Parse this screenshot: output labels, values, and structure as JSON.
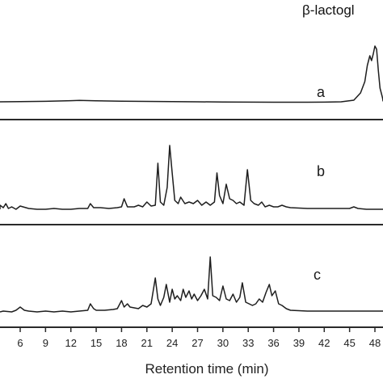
{
  "chart_data": {
    "type": "line",
    "xlabel": "Retention time (min)",
    "x_ticks": [
      6,
      9,
      12,
      15,
      18,
      21,
      24,
      27,
      30,
      33,
      36,
      39,
      42,
      45,
      48
    ],
    "xlim": [
      3,
      50
    ],
    "annotations": [
      {
        "text": "β-lactogl",
        "x": 47.5
      }
    ],
    "panels": [
      {
        "label": "a",
        "series": [
          {
            "x": [
              3,
              6,
              9,
              12,
              13,
              15,
              18,
              21,
              24,
              27,
              30,
              33,
              36,
              39,
              42,
              44,
              45.5,
              46.3,
              46.8,
              47.1,
              47.4,
              47.6,
              47.8,
              48.0,
              48.2,
              48.4,
              48.6,
              48.9,
              49.3,
              50
            ],
            "y": [
              1.0,
              1.2,
              1.6,
              2.4,
              2.7,
              2.2,
              1.8,
              1.5,
              1.2,
              1.0,
              0.8,
              0.6,
              0.5,
              0.5,
              0.6,
              1.0,
              3.0,
              12.0,
              26.0,
              46.0,
              58.0,
              52.0,
              60.0,
              70.0,
              66.0,
              40.0,
              18.0,
              6.0,
              2.0,
              1.5
            ]
          }
        ]
      },
      {
        "label": "b",
        "series": [
          {
            "x": [
              3,
              3.5,
              4,
              4.3,
              4.6,
              5,
              5.5,
              6,
              7,
              8,
              9,
              10,
              11,
              12,
              13,
              14,
              14.3,
              14.7,
              15.5,
              16.5,
              17.5,
              18,
              18.3,
              18.7,
              19.5,
              20,
              20.5,
              21,
              21.5,
              22,
              22.3,
              22.6,
              23,
              23.4,
              23.7,
              24.0,
              24.3,
              24.7,
              25,
              25.5,
              26,
              26.5,
              27,
              27.5,
              28,
              28.5,
              29,
              29.3,
              29.6,
              30,
              30.4,
              30.8,
              31.2,
              31.6,
              32,
              32.5,
              32.9,
              33.3,
              33.7,
              34.2,
              34.6,
              35,
              35.5,
              36,
              36.5,
              37,
              37.5,
              38,
              40,
              42,
              44,
              45,
              45.5,
              46,
              47,
              48,
              49,
              50
            ],
            "y": [
              3,
              8,
              5,
              10,
              4,
              6,
              3,
              7,
              4,
              3,
              3,
              4,
              3,
              3,
              4,
              4,
              10,
              5,
              5,
              4,
              5,
              6,
              16,
              6,
              6,
              8,
              6,
              12,
              7,
              8,
              60,
              12,
              8,
              30,
              82,
              48,
              14,
              10,
              18,
              10,
              12,
              10,
              14,
              8,
              12,
              8,
              12,
              48,
              20,
              10,
              34,
              16,
              14,
              10,
              12,
              8,
              52,
              14,
              10,
              8,
              12,
              6,
              8,
              6,
              6,
              8,
              6,
              5,
              4,
              4,
              4,
              4,
              6,
              4,
              3,
              3,
              3,
              3
            ]
          }
        ]
      },
      {
        "label": "c",
        "series": [
          {
            "x": [
              3,
              4,
              5,
              5.5,
              6,
              6.5,
              7,
              8,
              9,
              10,
              11,
              12,
              13,
              14,
              14.3,
              14.7,
              15,
              16,
              17,
              17.5,
              18,
              18.3,
              18.7,
              19,
              20,
              20.5,
              21,
              21.5,
              22,
              22.3,
              22.6,
              23,
              23.3,
              23.7,
              24,
              24.3,
              24.6,
              25,
              25.3,
              25.6,
              26,
              26.3,
              26.6,
              27,
              27.4,
              27.8,
              28.2,
              28.5,
              28.8,
              29.2,
              29.6,
              30,
              30.4,
              30.8,
              31.2,
              31.6,
              32,
              32.3,
              32.7,
              33.1,
              33.5,
              33.9,
              34.3,
              34.7,
              35.1,
              35.5,
              35.8,
              36.2,
              36.6,
              37,
              37.5,
              38,
              40,
              42,
              44,
              46,
              48,
              50
            ],
            "y": [
              2,
              3,
              2,
              4,
              8,
              4,
              3,
              2,
              3,
              2,
              3,
              2,
              3,
              4,
              12,
              6,
              4,
              4,
              5,
              6,
              16,
              8,
              12,
              8,
              6,
              10,
              8,
              12,
              44,
              18,
              10,
              20,
              36,
              14,
              30,
              18,
              22,
              16,
              30,
              20,
              28,
              18,
              24,
              16,
              22,
              30,
              18,
              70,
              22,
              20,
              16,
              34,
              18,
              16,
              24,
              14,
              20,
              38,
              14,
              12,
              10,
              12,
              18,
              14,
              26,
              36,
              22,
              28,
              12,
              10,
              6,
              4,
              3,
              3,
              3,
              3,
              3,
              3
            ]
          }
        ]
      }
    ]
  }
}
